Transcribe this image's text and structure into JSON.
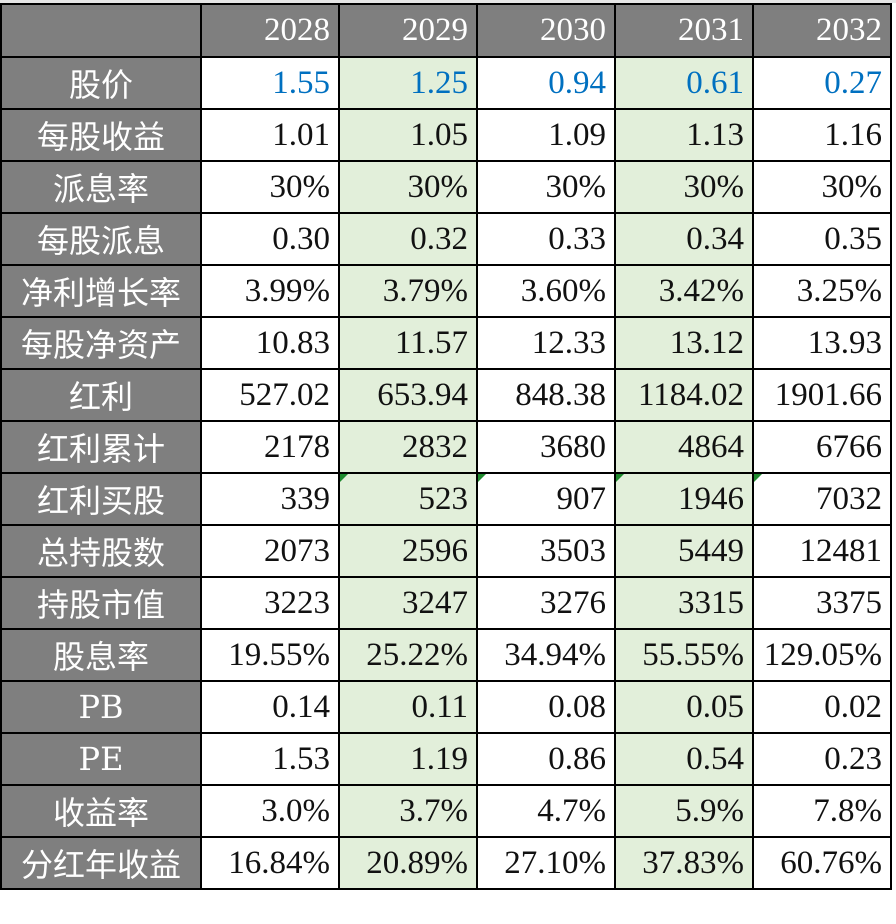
{
  "colors": {
    "header_bg": "#7f7f7f",
    "alt_col_bg": "#e2efda",
    "price_text": "#0070c0",
    "comment_marker": "#1e8a2e"
  },
  "years": [
    "2028",
    "2029",
    "2030",
    "2031",
    "2032"
  ],
  "rows": [
    {
      "label": "股价",
      "values": [
        "1.55",
        "1.25",
        "0.94",
        "0.61",
        "0.27"
      ]
    },
    {
      "label": "每股收益",
      "values": [
        "1.01",
        "1.05",
        "1.09",
        "1.13",
        "1.16"
      ]
    },
    {
      "label": "派息率",
      "values": [
        "30%",
        "30%",
        "30%",
        "30%",
        "30%"
      ]
    },
    {
      "label": "每股派息",
      "values": [
        "0.30",
        "0.32",
        "0.33",
        "0.34",
        "0.35"
      ]
    },
    {
      "label": "净利增长率",
      "values": [
        "3.99%",
        "3.79%",
        "3.60%",
        "3.42%",
        "3.25%"
      ]
    },
    {
      "label": "每股净资产",
      "values": [
        "10.83",
        "11.57",
        "12.33",
        "13.12",
        "13.93"
      ]
    },
    {
      "label": "红利",
      "values": [
        "527.02",
        "653.94",
        "848.38",
        "1184.02",
        "1901.66"
      ]
    },
    {
      "label": "红利累计",
      "values": [
        "2178",
        "2832",
        "3680",
        "4864",
        "6766"
      ]
    },
    {
      "label": "红利买股",
      "values": [
        "339",
        "523",
        "907",
        "1946",
        "7032"
      ]
    },
    {
      "label": "总持股数",
      "values": [
        "2073",
        "2596",
        "3503",
        "5449",
        "12481"
      ]
    },
    {
      "label": "持股市值",
      "values": [
        "3223",
        "3247",
        "3276",
        "3315",
        "3375"
      ]
    },
    {
      "label": "股息率",
      "values": [
        "19.55%",
        "25.22%",
        "34.94%",
        "55.55%",
        "129.05%"
      ]
    },
    {
      "label": "PB",
      "values": [
        "0.14",
        "0.11",
        "0.08",
        "0.05",
        "0.02"
      ]
    },
    {
      "label": "PE",
      "values": [
        "1.53",
        "1.19",
        "0.86",
        "0.54",
        "0.23"
      ]
    },
    {
      "label": "收益率",
      "values": [
        "3.0%",
        "3.7%",
        "4.7%",
        "5.9%",
        "7.8%"
      ]
    },
    {
      "label": "分红年收益",
      "values": [
        "16.84%",
        "20.89%",
        "27.10%",
        "37.83%",
        "60.76%"
      ]
    }
  ]
}
